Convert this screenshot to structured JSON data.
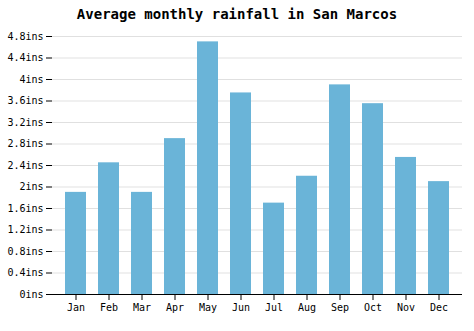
{
  "chart_data": {
    "type": "bar",
    "title": "Average monthly rainfall in San Marcos",
    "categories": [
      "Jan",
      "Feb",
      "Mar",
      "Apr",
      "May",
      "Jun",
      "Jul",
      "Aug",
      "Sep",
      "Oct",
      "Nov",
      "Dec"
    ],
    "values": [
      1.9,
      2.45,
      1.9,
      2.9,
      4.7,
      3.75,
      1.7,
      2.2,
      3.9,
      3.55,
      2.55,
      2.1
    ],
    "color": "#6ab4d8",
    "ylim": [
      0,
      4.8
    ],
    "yticks": [
      {
        "value": 0,
        "label": "0ins"
      },
      {
        "value": 0.4,
        "label": "0.4ins"
      },
      {
        "value": 0.8,
        "label": "0.8ins"
      },
      {
        "value": 1.2,
        "label": "1.2ins"
      },
      {
        "value": 1.6,
        "label": "1.6ins"
      },
      {
        "value": 2.0,
        "label": "2ins"
      },
      {
        "value": 2.4,
        "label": "2.4ins"
      },
      {
        "value": 2.8,
        "label": "2.8ins"
      },
      {
        "value": 3.2,
        "label": "3.2ins"
      },
      {
        "value": 3.6,
        "label": "3.6ins"
      },
      {
        "value": 4.0,
        "label": "4ins"
      },
      {
        "value": 4.4,
        "label": "4.4ins"
      },
      {
        "value": 4.8,
        "label": "4.8ins"
      }
    ],
    "grid": true
  }
}
